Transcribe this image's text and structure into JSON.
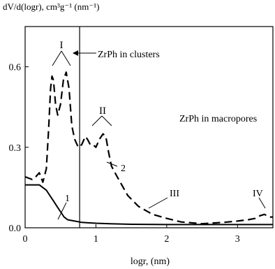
{
  "chart_data": {
    "type": "line",
    "ylabel": "dV/d(logr), cm³g⁻¹ (nm⁻¹)",
    "xlabel": "logr, (nm)",
    "xlim": [
      0,
      3.5
    ],
    "ylim": [
      0,
      0.75
    ],
    "x_ticks": [
      {
        "value": 0,
        "label": "0"
      },
      {
        "value": 1,
        "label": "1"
      },
      {
        "value": 2,
        "label": "2"
      },
      {
        "value": 3,
        "label": "3"
      }
    ],
    "y_ticks": [
      {
        "value": 0,
        "label": "0.0"
      },
      {
        "value": 0.3,
        "label": "0.3"
      },
      {
        "value": 0.6,
        "label": "0.6"
      }
    ],
    "grid": false,
    "series": [
      {
        "name": "1",
        "style": "solid",
        "x": [
          0,
          0.05,
          0.1,
          0.15,
          0.2,
          0.25,
          0.3,
          0.35,
          0.4,
          0.45,
          0.5,
          0.55,
          0.6,
          0.7,
          0.8,
          1.0,
          1.2,
          1.5,
          2.0,
          2.5,
          3.0,
          3.5
        ],
        "y": [
          0.16,
          0.16,
          0.16,
          0.16,
          0.16,
          0.15,
          0.14,
          0.12,
          0.1,
          0.08,
          0.06,
          0.04,
          0.03,
          0.025,
          0.02,
          0.017,
          0.015,
          0.013,
          0.012,
          0.012,
          0.012,
          0.012
        ]
      },
      {
        "name": "2",
        "style": "dashed",
        "x": [
          0,
          0.05,
          0.1,
          0.15,
          0.2,
          0.25,
          0.3,
          0.33,
          0.36,
          0.38,
          0.4,
          0.43,
          0.46,
          0.5,
          0.54,
          0.58,
          0.62,
          0.66,
          0.7,
          0.75,
          0.8,
          0.85,
          0.88,
          0.92,
          0.96,
          1.0,
          1.05,
          1.1,
          1.14,
          1.18,
          1.22,
          1.3,
          1.45,
          1.6,
          1.8,
          2.0,
          2.2,
          2.5,
          2.8,
          3.0,
          3.15,
          3.25,
          3.32,
          3.38,
          3.45,
          3.5
        ],
        "y": [
          0.19,
          0.185,
          0.18,
          0.19,
          0.205,
          0.17,
          0.22,
          0.36,
          0.52,
          0.565,
          0.55,
          0.46,
          0.42,
          0.46,
          0.55,
          0.58,
          0.52,
          0.38,
          0.33,
          0.3,
          0.31,
          0.34,
          0.33,
          0.31,
          0.31,
          0.3,
          0.33,
          0.35,
          0.34,
          0.28,
          0.23,
          0.19,
          0.12,
          0.08,
          0.05,
          0.035,
          0.022,
          0.015,
          0.02,
          0.025,
          0.03,
          0.035,
          0.045,
          0.05,
          0.04,
          0.04
        ]
      }
    ],
    "vertical_line_x": 0.77,
    "annotations": [
      {
        "text": "I"
      },
      {
        "text": "ZrPh in clusters"
      },
      {
        "text": "II"
      },
      {
        "text": "ZrPh in macropores"
      },
      {
        "text": "2"
      },
      {
        "text": "1"
      },
      {
        "text": "III"
      },
      {
        "text": "IV"
      }
    ]
  }
}
